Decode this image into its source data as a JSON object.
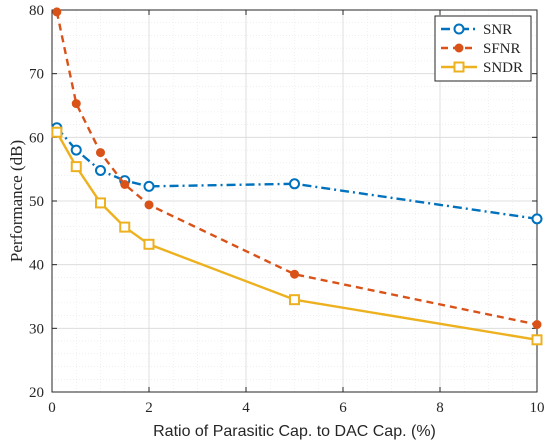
{
  "chart_data": {
    "type": "line",
    "xlabel": "Ratio of Parasitic Cap. to DAC Cap. (%)",
    "ylabel": "Performance (dB)",
    "xlim": [
      0,
      10
    ],
    "ylim": [
      20,
      80
    ],
    "xticks": [
      0,
      2,
      4,
      6,
      8,
      10
    ],
    "yticks": [
      20,
      30,
      40,
      50,
      60,
      70,
      80
    ],
    "grid": true,
    "minor_grid": true,
    "legend_position": "top-right",
    "series": [
      {
        "name": "SNR",
        "color": "#0072BD",
        "line_style": "dash-dot",
        "marker": "circle-open",
        "x": [
          0.1,
          0.5,
          1,
          1.5,
          2,
          5,
          10
        ],
        "y": [
          61.5,
          58.0,
          54.8,
          53.2,
          52.3,
          52.7,
          47.2
        ]
      },
      {
        "name": "SFNR",
        "color": "#D95319",
        "line_style": "dashed",
        "marker": "circle-filled",
        "x": [
          0.1,
          0.5,
          1,
          1.5,
          2,
          5,
          10
        ],
        "y": [
          79.7,
          65.3,
          57.6,
          52.6,
          49.4,
          38.5,
          30.6
        ]
      },
      {
        "name": "SNDR",
        "color": "#EDB120",
        "line_style": "solid",
        "marker": "square-open",
        "x": [
          0.1,
          0.5,
          1,
          1.5,
          2,
          5,
          10
        ],
        "y": [
          60.8,
          55.4,
          49.7,
          45.9,
          43.2,
          34.5,
          28.2
        ]
      }
    ]
  }
}
